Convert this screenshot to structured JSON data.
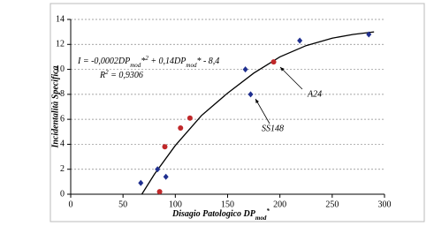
{
  "chart_data": {
    "type": "scatter",
    "x_label": [
      "Disagio Patologico DP",
      "mod",
      "*"
    ],
    "y_label": "Incidentalità Specifica",
    "xlim": [
      0,
      300
    ],
    "xticks": [
      0,
      50,
      100,
      150,
      200,
      250,
      300
    ],
    "ylim": [
      0,
      14
    ],
    "yticks": [
      0,
      2,
      4,
      6,
      8,
      10,
      12,
      14
    ],
    "grid": true,
    "series": [
      {
        "color": "#1f2f8f",
        "marker": "diamond",
        "x": [
          67,
          83,
          91,
          167,
          172,
          219,
          285
        ],
        "values": [
          0.9,
          2.0,
          1.4,
          10.0,
          8.0,
          12.3,
          12.8
        ]
      },
      {
        "color": "#c0282a",
        "marker": "circle",
        "x": [
          85,
          90,
          105,
          114,
          194
        ],
        "values": [
          0.2,
          3.8,
          5.3,
          6.1,
          10.6
        ]
      }
    ],
    "fit": {
      "color": "#000000",
      "x": [
        68,
        80,
        100,
        125,
        150,
        175,
        200,
        225,
        250,
        270,
        290
      ],
      "values": [
        0,
        1.6,
        3.9,
        6.3,
        8.1,
        9.7,
        11.0,
        11.9,
        12.5,
        12.8,
        13.0
      ]
    },
    "equation": [
      "I = -0,0002DP",
      "mod",
      "*",
      "2",
      " + 0,14DP",
      "mod",
      "* - 8,4"
    ],
    "r2": [
      "R",
      "2",
      " = 0,9306"
    ],
    "annotations": [
      "A24",
      "SS148"
    ]
  }
}
